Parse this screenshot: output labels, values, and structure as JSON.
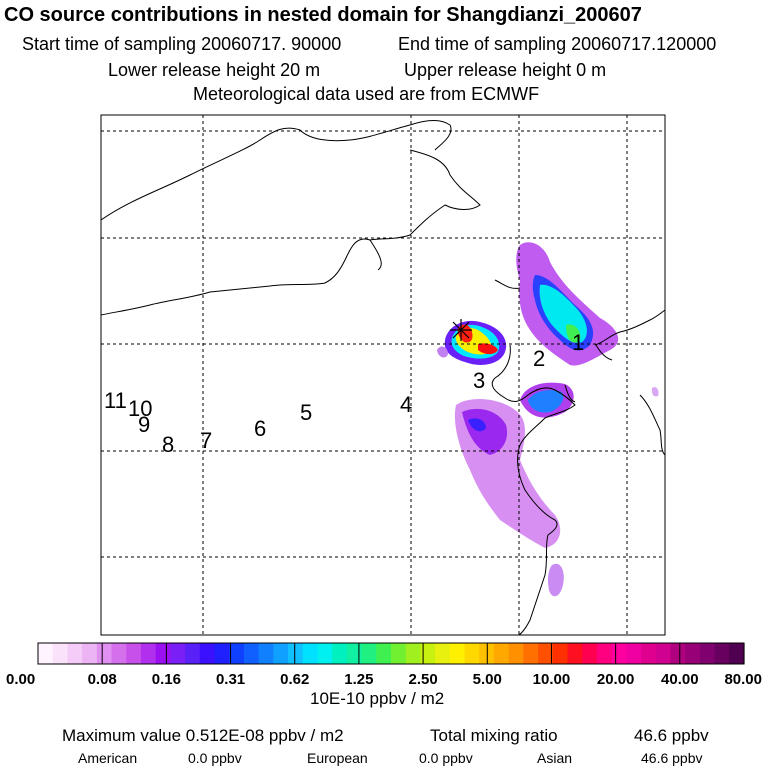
{
  "header": {
    "title": "CO  source contributions in nested domain for Shangdianzi_200607",
    "start_time": "Start time of sampling 20060717. 90000",
    "end_time": "End time of sampling 20060717.120000",
    "lower_release": "Lower release height   20 m",
    "upper_release": "Upper release height    0 m",
    "met_data": "Meteorological data used are from ECMWF"
  },
  "chart_data": {
    "type": "heatmap",
    "map_labels": [
      "1",
      "2",
      "3",
      "4",
      "5",
      "6",
      "7",
      "8",
      "9",
      "10",
      "11"
    ],
    "colorbar": {
      "tick_labels": [
        "0.00",
        "0.08",
        "0.16",
        "0.31",
        "0.62",
        "1.25",
        "2.50",
        "5.00",
        "10.00",
        "20.00",
        "40.00",
        "80.00"
      ],
      "unit": "10E-10 ppbv / m2",
      "colors": [
        "#fff4ff",
        "#fbe2fb",
        "#f5ccf8",
        "#ecb4f4",
        "#e090f0",
        "#d470ec",
        "#c850ea",
        "#b030ee",
        "#9a10f0",
        "#7a20f6",
        "#5a20f8",
        "#3a10ff",
        "#2020ff",
        "#1040ff",
        "#1060ff",
        "#1080ff",
        "#10a0ff",
        "#10c0ff",
        "#00e0ff",
        "#00f0f0",
        "#00f0c0",
        "#10f0a0",
        "#20f080",
        "#40f050",
        "#70f030",
        "#a0f020",
        "#c8f010",
        "#e8f010",
        "#fff000",
        "#ffd800",
        "#ffc000",
        "#ffa800",
        "#ff9000",
        "#ff7000",
        "#ff5000",
        "#ff3000",
        "#ff1020",
        "#ff0050",
        "#ff0080",
        "#ff00a0",
        "#f000a0",
        "#e00090",
        "#d00090",
        "#b00080",
        "#980078",
        "#800070",
        "#680060",
        "#500050"
      ]
    }
  },
  "footer": {
    "max_label": "Maximum value  0.512E-08 ppbv / m2",
    "total_label": "Total mixing ratio",
    "total_value": "46.6 ppbv",
    "regions": [
      {
        "name": "American",
        "value": "0.0 ppbv"
      },
      {
        "name": "European",
        "value": "0.0 ppbv"
      },
      {
        "name": "Asian",
        "value": "46.6 ppbv"
      }
    ]
  }
}
